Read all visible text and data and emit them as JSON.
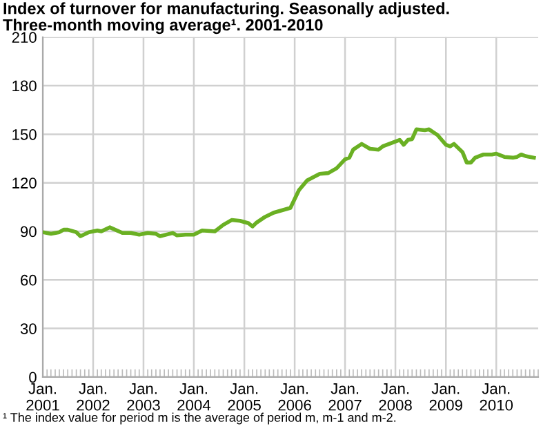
{
  "chart_data": {
    "type": "line",
    "title": "Index of turnover for manufacturing. Seasonally adjusted.\nThree-month moving average¹. 2001-2010",
    "annotations": [
      "¹ The index value for period m is the average of period m, m-1 and m-2."
    ],
    "x": [
      "2001-01",
      "2001-03",
      "2001-05",
      "2001-06",
      "2001-07",
      "2001-09",
      "2001-10",
      "2001-12",
      "2002-02",
      "2002-03",
      "2002-05",
      "2002-08",
      "2002-10",
      "2002-12",
      "2003-02",
      "2003-04",
      "2003-05",
      "2003-08",
      "2003-09",
      "2003-11",
      "2004-01",
      "2004-03",
      "2004-06",
      "2004-08",
      "2004-10",
      "2004-12",
      "2005-02",
      "2005-03",
      "2005-04",
      "2005-06",
      "2005-08",
      "2005-12",
      "2006-02",
      "2006-04",
      "2006-07",
      "2006-09",
      "2006-11",
      "2007-01",
      "2007-02",
      "2007-03",
      "2007-05",
      "2007-07",
      "2007-09",
      "2007-10",
      "2008-02",
      "2008-03",
      "2008-04",
      "2008-05",
      "2008-06",
      "2008-08",
      "2008-09",
      "2008-11",
      "2009-01",
      "2009-02",
      "2009-03",
      "2009-05",
      "2009-06",
      "2009-07",
      "2009-08",
      "2009-10",
      "2009-12",
      "2010-01",
      "2010-03",
      "2010-05",
      "2010-06",
      "2010-07",
      "2010-08",
      "2010-10"
    ],
    "series": [
      {
        "color": "#6ab023",
        "values": [
          89.5,
          88.5,
          89.5,
          91,
          91,
          89.5,
          87,
          89.5,
          90.5,
          90,
          92.5,
          89,
          89,
          88,
          89,
          88.5,
          87,
          89,
          87.5,
          88,
          88,
          90.5,
          90,
          94,
          97,
          96.5,
          95,
          93,
          95.5,
          99,
          101.5,
          104.5,
          115.5,
          121.5,
          125.5,
          126,
          129,
          134.5,
          135.5,
          140.5,
          144,
          141,
          140.5,
          142.5,
          146.5,
          143.5,
          146.5,
          147,
          153,
          152.5,
          153,
          149.5,
          143.5,
          142.5,
          144,
          139,
          132.5,
          132.5,
          135.5,
          137.5,
          137.5,
          138,
          136,
          135.5,
          136,
          137.5,
          136.5,
          135.5
        ]
      }
    ],
    "xlim": [
      "2001-01",
      "2010-11"
    ],
    "xticks": [
      {
        "value": "2001-01",
        "label": "Jan.\n2001"
      },
      {
        "value": "2002-01",
        "label": "Jan.\n2002"
      },
      {
        "value": "2003-01",
        "label": "Jan.\n2003"
      },
      {
        "value": "2004-01",
        "label": "Jan.\n2004"
      },
      {
        "value": "2005-01",
        "label": "Jan.\n2005"
      },
      {
        "value": "2006-01",
        "label": "Jan.\n2006"
      },
      {
        "value": "2007-01",
        "label": "Jan.\n2007"
      },
      {
        "value": "2008-01",
        "label": "Jan.\n2008"
      },
      {
        "value": "2009-01",
        "label": "Jan.\n2009"
      },
      {
        "value": "2010-01",
        "label": "Jan.\n2010"
      }
    ],
    "ylim": [
      0,
      210
    ],
    "yticks": [
      0,
      30,
      60,
      90,
      120,
      150,
      180,
      210
    ],
    "grid": true,
    "marker": "none",
    "line_style": "solid"
  }
}
